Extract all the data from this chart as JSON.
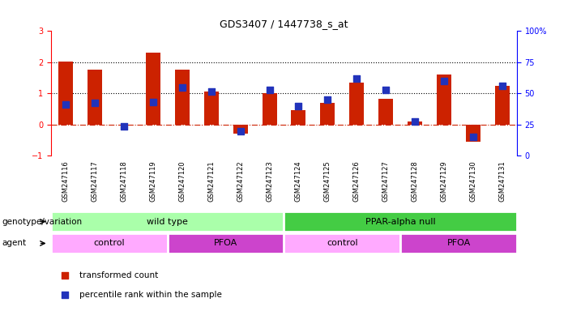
{
  "title": "GDS3407 / 1447738_s_at",
  "samples": [
    "GSM247116",
    "GSM247117",
    "GSM247118",
    "GSM247119",
    "GSM247120",
    "GSM247121",
    "GSM247122",
    "GSM247123",
    "GSM247124",
    "GSM247125",
    "GSM247126",
    "GSM247127",
    "GSM247128",
    "GSM247129",
    "GSM247130",
    "GSM247131"
  ],
  "red_values": [
    2.02,
    1.75,
    0.0,
    2.3,
    1.75,
    1.05,
    -0.3,
    1.0,
    0.45,
    0.7,
    1.35,
    0.82,
    0.1,
    1.6,
    -0.55,
    1.25
  ],
  "blue_values": [
    0.65,
    0.68,
    -0.05,
    0.72,
    1.2,
    1.05,
    -0.22,
    1.12,
    0.6,
    0.8,
    1.48,
    1.12,
    0.1,
    1.4,
    -0.4,
    1.25
  ],
  "ylim_left": [
    -1,
    3
  ],
  "ylim_right": [
    0,
    100
  ],
  "yticks_left": [
    -1,
    0,
    1,
    2,
    3
  ],
  "yticks_right": [
    0,
    25,
    50,
    75,
    100
  ],
  "yticklabels_right": [
    "0",
    "25",
    "50",
    "75",
    "100%"
  ],
  "hline_y": [
    1.0,
    2.0
  ],
  "zero_line_y": 0.0,
  "bar_color": "#CC2200",
  "dot_color": "#2233BB",
  "genotype_groups": [
    {
      "label": "wild type",
      "start": 0,
      "end": 8,
      "color": "#AAFFAA"
    },
    {
      "label": "PPAR-alpha null",
      "start": 8,
      "end": 16,
      "color": "#44CC44"
    }
  ],
  "agent_groups": [
    {
      "label": "control",
      "start": 0,
      "end": 4,
      "color": "#FFAAFF"
    },
    {
      "label": "PFOA",
      "start": 4,
      "end": 8,
      "color": "#CC44CC"
    },
    {
      "label": "control",
      "start": 8,
      "end": 12,
      "color": "#FFAAFF"
    },
    {
      "label": "PFOA",
      "start": 12,
      "end": 16,
      "color": "#CC44CC"
    }
  ],
  "legend_items": [
    {
      "label": "transformed count",
      "color": "#CC2200"
    },
    {
      "label": "percentile rank within the sample",
      "color": "#2233BB"
    }
  ],
  "bar_width": 0.5,
  "dot_size": 40,
  "bg_color": "#FFFFFF",
  "genotype_label": "genotype/variation",
  "agent_label": "agent"
}
